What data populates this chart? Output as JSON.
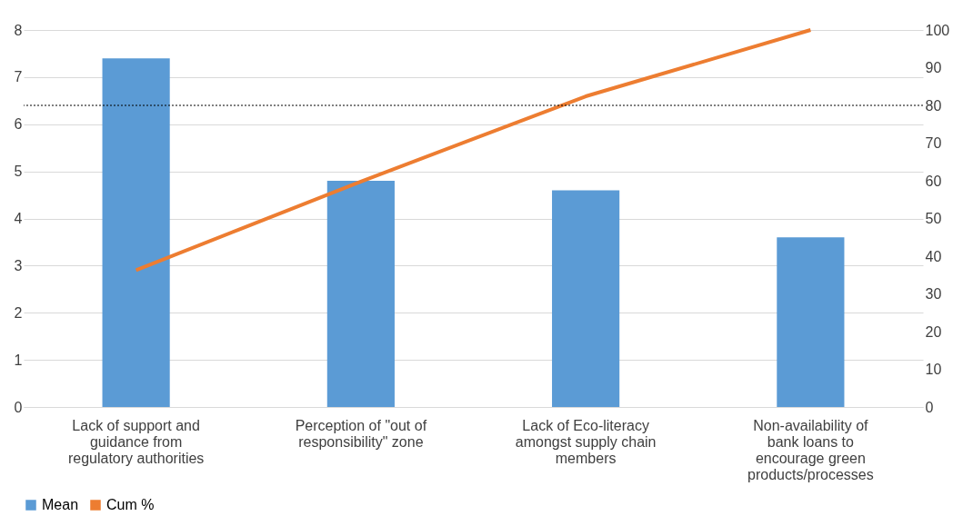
{
  "chart_data": {
    "type": "bar",
    "categories": [
      "Lack of support and guidance from regulatory authorities",
      "Perception of \"out of responsibility\" zone",
      "Lack of Eco-literacy amongst supply chain members",
      "Non-availability of bank loans to encourage green products/processes"
    ],
    "series": [
      {
        "name": "Mean",
        "color": "#5b9bd5",
        "values": [
          7.4,
          4.8,
          4.6,
          3.6
        ]
      },
      {
        "name": "Cum %",
        "type": "line",
        "axis": "y2",
        "color": "#ed7d31",
        "values": [
          36.3,
          59.8,
          82.4,
          100
        ]
      }
    ],
    "ylim": [
      0,
      8
    ],
    "yticks": [
      0,
      1,
      2,
      3,
      4,
      5,
      6,
      7,
      8
    ],
    "y2lim": [
      0,
      100
    ],
    "y2ticks": [
      0,
      10,
      20,
      30,
      40,
      50,
      60,
      70,
      80,
      90,
      100
    ],
    "ref_lines": [
      {
        "axis": "y2",
        "value": 80,
        "line_style": "dotted",
        "color": "#000000"
      }
    ],
    "grid": "y",
    "legend": "bottom",
    "marker": "none",
    "line_style": "solid"
  }
}
